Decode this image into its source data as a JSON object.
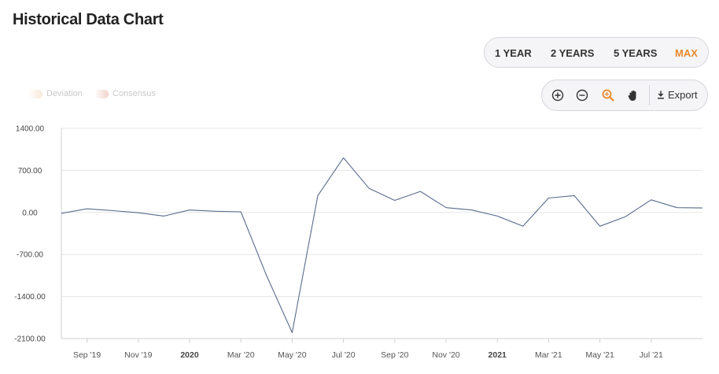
{
  "title": "Historical Data Chart",
  "range_buttons": [
    {
      "label": "1 YEAR",
      "active": false
    },
    {
      "label": "2 YEARS",
      "active": false
    },
    {
      "label": "5 YEARS",
      "active": false
    },
    {
      "label": "MAX",
      "active": true
    }
  ],
  "toolbar": {
    "zoom_in": "zoom-in-icon",
    "zoom_out": "zoom-out-icon",
    "zoom_select": "zoom-select-icon",
    "pan": "pan-hand-icon",
    "export_label": "Export"
  },
  "legend": [
    {
      "label": "Deviation",
      "color": "#f7e9d8"
    },
    {
      "label": "Consensus",
      "color": "#f2d2cc"
    }
  ],
  "colors": {
    "line": "#5a6b8c",
    "accent": "#e8892d",
    "grid": "#e6e6e6"
  },
  "chart_data": {
    "type": "line",
    "x": [
      "2019-08",
      "2019-09",
      "2019-10",
      "2019-11",
      "2019-12",
      "2020-01",
      "2020-02",
      "2020-03",
      "2020-04",
      "2020-05",
      "2020-06",
      "2020-07",
      "2020-08",
      "2020-09",
      "2020-10",
      "2020-11",
      "2020-12",
      "2021-01",
      "2021-02",
      "2021-03",
      "2021-04",
      "2021-05",
      "2021-06",
      "2021-07",
      "2021-08",
      "2021-09"
    ],
    "series": [
      {
        "values": [
          -15,
          60,
          30,
          -5,
          -60,
          40,
          20,
          10,
          -1050,
          -2000,
          280,
          910,
          400,
          200,
          350,
          80,
          40,
          -60,
          -230,
          240,
          280,
          -230,
          -70,
          210,
          80,
          75
        ]
      }
    ],
    "y_ticks": [
      "1400.00",
      "700.00",
      "0.00",
      "-700.00",
      "-1400.00",
      "-2100.00"
    ],
    "ylim": [
      -2100,
      1400
    ],
    "x_ticks": [
      {
        "label": "Sep '19",
        "bold": false
      },
      {
        "label": "Nov '19",
        "bold": false
      },
      {
        "label": "2020",
        "bold": true
      },
      {
        "label": "Mar '20",
        "bold": false
      },
      {
        "label": "May '20",
        "bold": false
      },
      {
        "label": "Jul '20",
        "bold": false
      },
      {
        "label": "Sep '20",
        "bold": false
      },
      {
        "label": "Nov '20",
        "bold": false
      },
      {
        "label": "2021",
        "bold": true
      },
      {
        "label": "Mar '21",
        "bold": false
      },
      {
        "label": "May '21",
        "bold": false
      },
      {
        "label": "Jul '21",
        "bold": false
      }
    ],
    "grid": true
  }
}
